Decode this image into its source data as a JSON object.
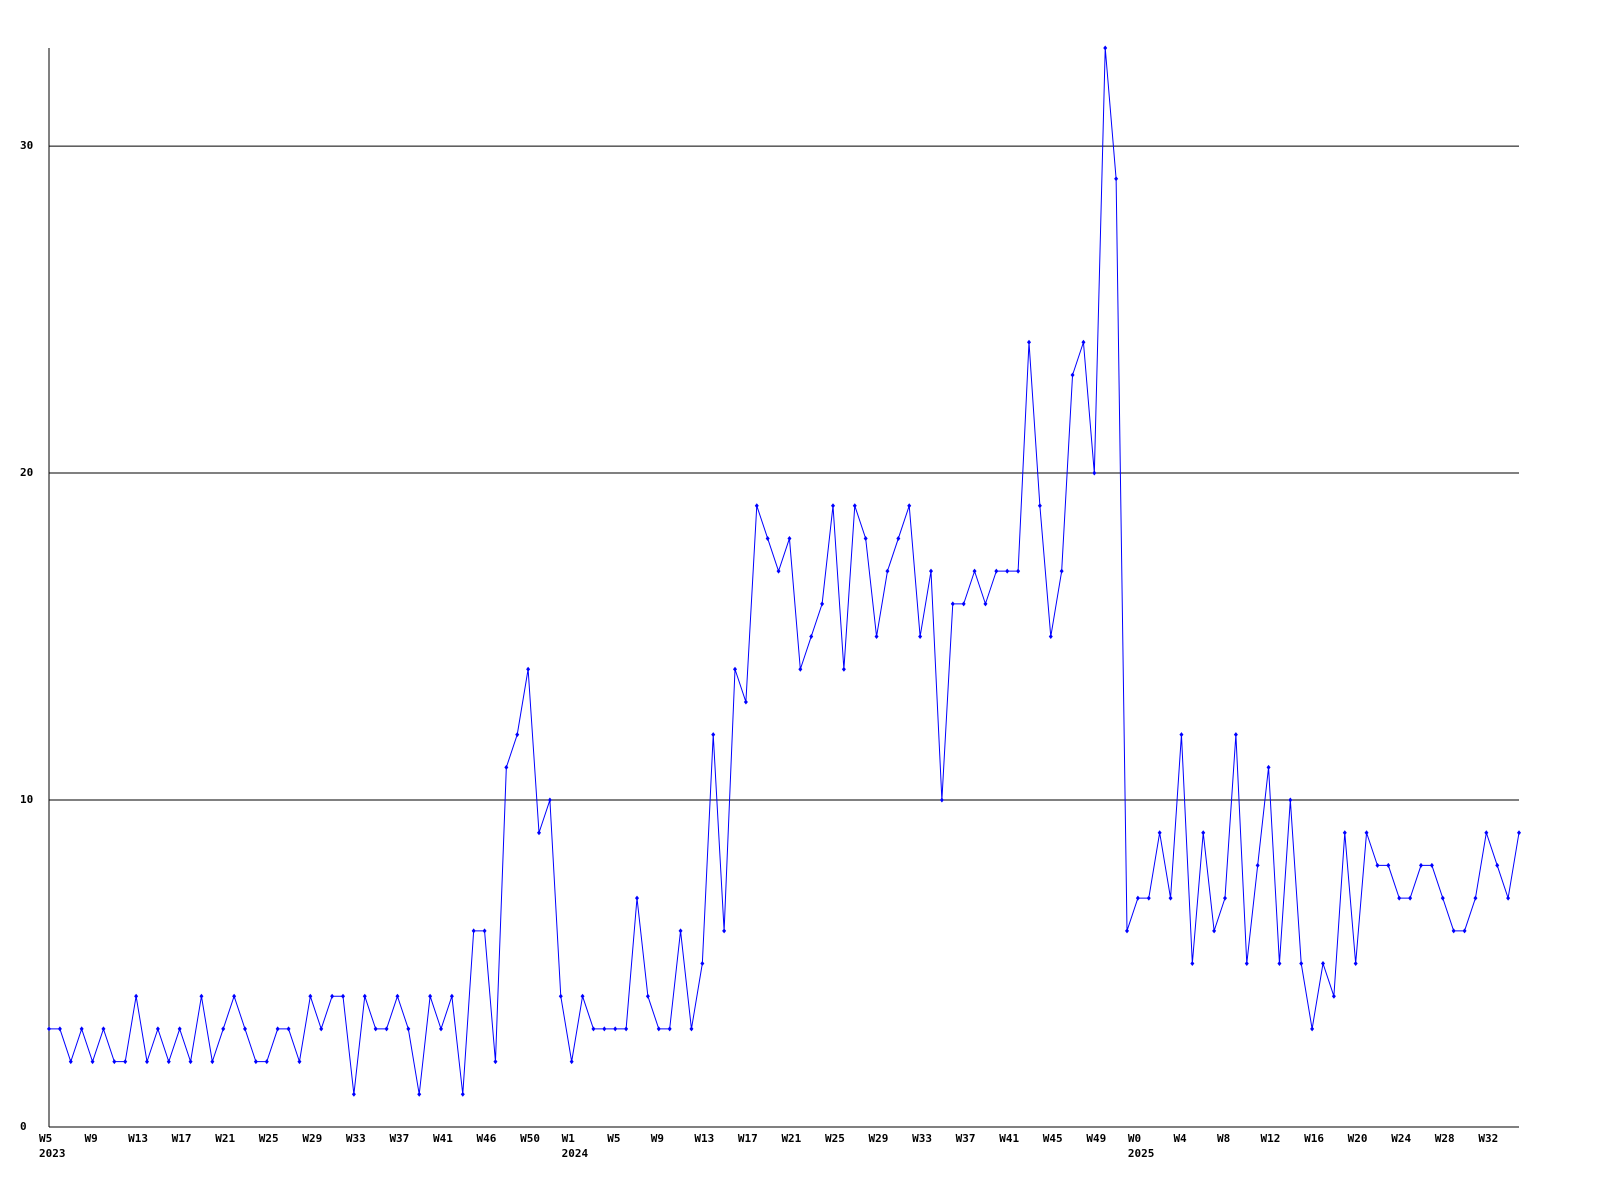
{
  "chart_data": {
    "type": "line",
    "categories": [
      {
        "label": "W5",
        "year": "2023"
      },
      null,
      null,
      null,
      "W9",
      null,
      null,
      null,
      "W13",
      null,
      null,
      null,
      "W17",
      null,
      null,
      null,
      "W21",
      null,
      null,
      null,
      "W25",
      null,
      null,
      null,
      "W29",
      null,
      null,
      null,
      "W33",
      null,
      null,
      null,
      "W37",
      null,
      null,
      null,
      "W41",
      null,
      null,
      null,
      "W46",
      null,
      null,
      null,
      "W50",
      null,
      null,
      null,
      {
        "label": "W1",
        "year": "2024"
      },
      null,
      null,
      null,
      "W5",
      null,
      null,
      null,
      "W9",
      null,
      null,
      null,
      "W13",
      null,
      null,
      null,
      "W17",
      null,
      null,
      null,
      "W21",
      null,
      null,
      null,
      "W25",
      null,
      null,
      null,
      "W29",
      null,
      null,
      null,
      "W33",
      null,
      null,
      null,
      "W37",
      null,
      null,
      null,
      "W41",
      null,
      null,
      null,
      "W45",
      null,
      null,
      null,
      "W49",
      null,
      null,
      null,
      {
        "label": "W0",
        "year": "2025"
      },
      null,
      null,
      null,
      "W4",
      null,
      null,
      null,
      "W8",
      null,
      null,
      null,
      "W12",
      null,
      null,
      null,
      "W16",
      null,
      null,
      null,
      "W20",
      null,
      null,
      null,
      "W24",
      null,
      null,
      null,
      "W28",
      null,
      null,
      null,
      "W32",
      null,
      null,
      null
    ],
    "series": [
      {
        "color": "#0000ff",
        "values": [
          3,
          3,
          2,
          3,
          2,
          3,
          2,
          2,
          4,
          2,
          3,
          2,
          3,
          2,
          4,
          2,
          3,
          4,
          3,
          2,
          2,
          3,
          3,
          2,
          4,
          3,
          4,
          4,
          1,
          4,
          3,
          3,
          4,
          3,
          1,
          4,
          3,
          4,
          1,
          6,
          6,
          2,
          11,
          12,
          14,
          9,
          10,
          4,
          2,
          4,
          3,
          3,
          3,
          3,
          7,
          4,
          3,
          3,
          6,
          3,
          5,
          12,
          6,
          14,
          13,
          19,
          18,
          17,
          18,
          14,
          15,
          16,
          19,
          14,
          19,
          18,
          15,
          17,
          18,
          19,
          15,
          17,
          10,
          16,
          16,
          17,
          16,
          17,
          17,
          17,
          24,
          19,
          15,
          17,
          23,
          24,
          20,
          33,
          29,
          6,
          7,
          7,
          9,
          7,
          12,
          5,
          9,
          6,
          7,
          12,
          5,
          8,
          11,
          5,
          10,
          5,
          3,
          5,
          4,
          9,
          5,
          9,
          8,
          8,
          7,
          7,
          8,
          8,
          7,
          6,
          6,
          7,
          9,
          8,
          7,
          9
        ]
      }
    ],
    "ylim": [
      0,
      33
    ],
    "yticks": [
      0,
      10,
      20,
      30
    ],
    "grid": true
  }
}
